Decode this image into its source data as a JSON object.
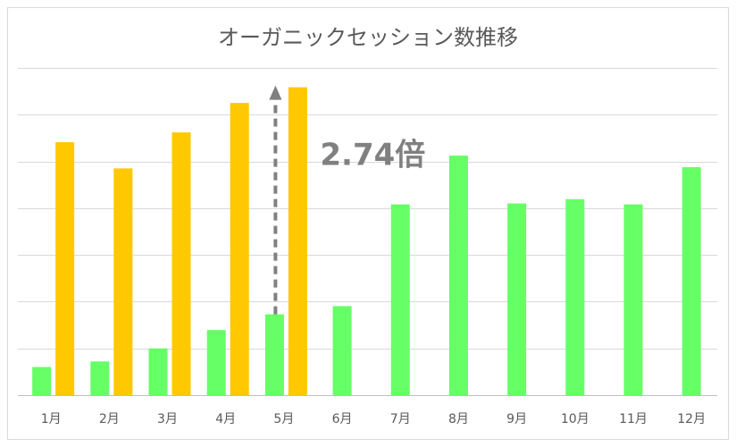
{
  "chart_data": {
    "type": "bar",
    "title": "オーガニックセッション数推移",
    "xlabel": "",
    "ylabel": "",
    "categories": [
      "1月",
      "2月",
      "3月",
      "4月",
      "5月",
      "6月",
      "7月",
      "8月",
      "9月",
      "10月",
      "11月",
      "12月"
    ],
    "series": [
      {
        "values": [
          0.86,
          1.03,
          1.43,
          1.99,
          2.47,
          2.72,
          5.83,
          7.32,
          5.86,
          5.99,
          5.83,
          6.97
        ],
        "color": "#66ff66"
      },
      {
        "values": [
          7.73,
          6.93,
          8.03,
          8.93,
          9.41,
          null,
          null,
          null,
          null,
          null,
          null,
          null
        ],
        "color": "#ffc800"
      }
    ],
    "ylim": [
      0,
      10
    ],
    "yticks": [
      0,
      1.43,
      2.86,
      4.29,
      5.71,
      7.14,
      8.57,
      10
    ],
    "grid": true,
    "annotation": {
      "text": "2.74倍",
      "from_category": "5月",
      "color": "#808080"
    }
  }
}
